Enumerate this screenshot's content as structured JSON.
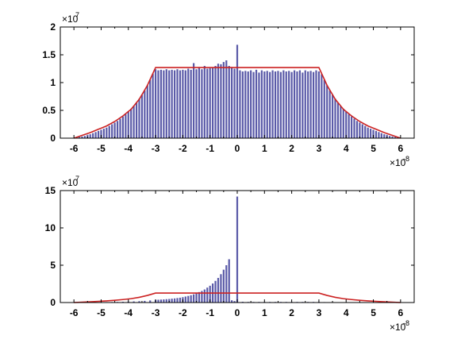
{
  "chart_data": [
    {
      "type": "bar",
      "x_multiplier": "×10",
      "x_multiplier_exp": "-8",
      "y_multiplier": "×10",
      "y_multiplier_exp": "7",
      "xlim": [
        -6.5,
        6.5
      ],
      "ylim": [
        0,
        2
      ],
      "xticks": [
        "-6",
        "-5",
        "-4",
        "-3",
        "-2",
        "-1",
        "0",
        "1",
        "2",
        "3",
        "4",
        "5",
        "6"
      ],
      "xtick_values": [
        -6,
        -5,
        -4,
        -3,
        -2,
        -1,
        0,
        1,
        2,
        3,
        4,
        5,
        6
      ],
      "yticks": [
        "0",
        "0.5",
        "1",
        "1.5",
        "2"
      ],
      "ytick_values": [
        0,
        0.5,
        1,
        1.5,
        2
      ],
      "bar_color": "#5a5aa8",
      "line_color": "#cc2222",
      "bars": {
        "x": [
          -5.9,
          -5.8,
          -5.7,
          -5.6,
          -5.5,
          -5.4,
          -5.3,
          -5.2,
          -5.1,
          -5.0,
          -4.9,
          -4.8,
          -4.7,
          -4.6,
          -4.5,
          -4.4,
          -4.3,
          -4.2,
          -4.1,
          -4.0,
          -3.9,
          -3.8,
          -3.7,
          -3.6,
          -3.5,
          -3.4,
          -3.3,
          -3.2,
          -3.1,
          -3.0,
          -2.9,
          -2.8,
          -2.7,
          -2.6,
          -2.5,
          -2.4,
          -2.3,
          -2.2,
          -2.1,
          -2.0,
          -1.9,
          -1.8,
          -1.7,
          -1.6,
          -1.5,
          -1.4,
          -1.3,
          -1.2,
          -1.1,
          -1.0,
          -0.9,
          -0.8,
          -0.7,
          -0.6,
          -0.5,
          -0.4,
          -0.3,
          -0.2,
          -0.1,
          0.0,
          0.1,
          0.2,
          0.3,
          0.4,
          0.5,
          0.6,
          0.7,
          0.8,
          0.9,
          1.0,
          1.1,
          1.2,
          1.3,
          1.4,
          1.5,
          1.6,
          1.7,
          1.8,
          1.9,
          2.0,
          2.1,
          2.2,
          2.3,
          2.4,
          2.5,
          2.6,
          2.7,
          2.8,
          2.9,
          3.0,
          3.1,
          3.2,
          3.3,
          3.4,
          3.5,
          3.6,
          3.7,
          3.8,
          3.9,
          4.0,
          4.1,
          4.2,
          4.3,
          4.4,
          4.5,
          4.6,
          4.7,
          4.8,
          4.9,
          5.0,
          5.1,
          5.2,
          5.3,
          5.4,
          5.5,
          5.6,
          5.7,
          5.8,
          5.9
        ],
        "values": [
          0.01,
          0.02,
          0.03,
          0.04,
          0.06,
          0.07,
          0.09,
          0.11,
          0.13,
          0.15,
          0.17,
          0.19,
          0.22,
          0.25,
          0.28,
          0.31,
          0.35,
          0.39,
          0.43,
          0.48,
          0.53,
          0.58,
          0.64,
          0.71,
          0.78,
          0.86,
          0.95,
          1.05,
          1.16,
          1.24,
          1.22,
          1.23,
          1.22,
          1.24,
          1.22,
          1.23,
          1.22,
          1.24,
          1.22,
          1.23,
          1.22,
          1.25,
          1.23,
          1.35,
          1.24,
          1.28,
          1.24,
          1.3,
          1.25,
          1.26,
          1.27,
          1.3,
          1.34,
          1.33,
          1.37,
          1.4,
          1.3,
          1.28,
          1.25,
          1.68,
          1.22,
          1.2,
          1.21,
          1.2,
          1.22,
          1.19,
          1.23,
          1.18,
          1.22,
          1.2,
          1.21,
          1.19,
          1.22,
          1.2,
          1.21,
          1.19,
          1.22,
          1.2,
          1.21,
          1.19,
          1.22,
          1.2,
          1.22,
          1.18,
          1.22,
          1.2,
          1.21,
          1.19,
          1.22,
          1.2,
          1.15,
          1.05,
          0.95,
          0.86,
          0.78,
          0.71,
          0.64,
          0.58,
          0.53,
          0.48,
          0.43,
          0.39,
          0.35,
          0.31,
          0.28,
          0.25,
          0.22,
          0.19,
          0.17,
          0.15,
          0.13,
          0.11,
          0.09,
          0.07,
          0.06,
          0.04,
          0.03,
          0.02,
          0.01
        ]
      },
      "line": {
        "x": [
          -6.0,
          -5.7,
          -5.4,
          -5.1,
          -4.8,
          -4.5,
          -4.2,
          -3.9,
          -3.6,
          -3.3,
          -3.0,
          3.0,
          3.3,
          3.6,
          3.9,
          4.2,
          4.5,
          4.8,
          5.1,
          5.4,
          5.7,
          6.0
        ],
        "y": [
          0.0,
          0.05,
          0.1,
          0.16,
          0.22,
          0.3,
          0.4,
          0.52,
          0.7,
          0.95,
          1.27,
          1.27,
          0.95,
          0.7,
          0.52,
          0.4,
          0.3,
          0.22,
          0.16,
          0.1,
          0.05,
          0.0
        ]
      }
    },
    {
      "type": "bar",
      "x_multiplier": "×10",
      "x_multiplier_exp": "-8",
      "y_multiplier": "×10",
      "y_multiplier_exp": "7",
      "xlim": [
        -6.5,
        6.5
      ],
      "ylim": [
        0,
        15
      ],
      "xticks": [
        "-6",
        "-5",
        "-4",
        "-3",
        "-2",
        "-1",
        "0",
        "1",
        "2",
        "3",
        "4",
        "5",
        "6"
      ],
      "xtick_values": [
        -6,
        -5,
        -4,
        -3,
        -2,
        -1,
        0,
        1,
        2,
        3,
        4,
        5,
        6
      ],
      "yticks": [
        "0",
        "5",
        "10",
        "15"
      ],
      "ytick_values": [
        0,
        5,
        10,
        15
      ],
      "bar_color": "#5a5aa8",
      "line_color": "#cc2222",
      "bars": {
        "x": [
          -5.0,
          -4.8,
          -4.6,
          -4.4,
          -4.2,
          -4.0,
          -3.8,
          -3.6,
          -3.4,
          -3.2,
          -3.0,
          -2.9,
          -2.8,
          -2.7,
          -2.6,
          -2.5,
          -2.4,
          -2.3,
          -2.2,
          -2.1,
          -2.0,
          -1.9,
          -1.8,
          -1.7,
          -1.6,
          -1.5,
          -1.4,
          -1.3,
          -1.2,
          -1.1,
          -1.0,
          -0.9,
          -0.8,
          -0.7,
          -0.6,
          -0.5,
          -0.4,
          -0.3,
          -0.2,
          -0.1,
          0.0,
          0.2,
          0.4,
          0.6,
          0.8,
          1.0,
          1.2,
          1.4,
          1.6,
          1.8,
          2.0,
          2.2,
          2.4,
          2.6,
          2.8,
          3.0,
          3.2,
          3.4,
          3.6,
          3.8,
          4.0,
          4.2,
          4.4
        ],
        "values": [
          0.05,
          0.06,
          0.07,
          0.08,
          0.1,
          0.12,
          0.15,
          0.18,
          0.22,
          0.28,
          0.35,
          0.38,
          0.4,
          0.42,
          0.45,
          0.48,
          0.52,
          0.55,
          0.6,
          0.65,
          0.72,
          0.8,
          0.88,
          0.98,
          1.1,
          1.25,
          1.4,
          1.55,
          1.75,
          2.0,
          2.25,
          2.55,
          2.9,
          3.3,
          3.8,
          4.4,
          5.0,
          5.8,
          0.3,
          0.2,
          14.2,
          0.1,
          0.08,
          0.08,
          0.08,
          0.08,
          0.08,
          0.08,
          0.08,
          0.08,
          0.08,
          0.08,
          0.08,
          0.08,
          0.08,
          0.08,
          0.06,
          0.05,
          0.04,
          0.03,
          0.03,
          0.02,
          0.02
        ]
      },
      "line": {
        "x": [
          -6.0,
          -5.7,
          -5.4,
          -5.1,
          -4.8,
          -4.5,
          -4.2,
          -3.9,
          -3.6,
          -3.3,
          -3.0,
          3.0,
          3.3,
          3.6,
          3.9,
          4.2,
          4.5,
          4.8,
          5.1,
          5.4,
          5.7,
          6.0
        ],
        "y": [
          0.0,
          0.05,
          0.1,
          0.16,
          0.22,
          0.3,
          0.4,
          0.52,
          0.7,
          0.95,
          1.27,
          1.27,
          0.95,
          0.7,
          0.52,
          0.4,
          0.3,
          0.22,
          0.16,
          0.1,
          0.05,
          0.0
        ]
      }
    }
  ]
}
